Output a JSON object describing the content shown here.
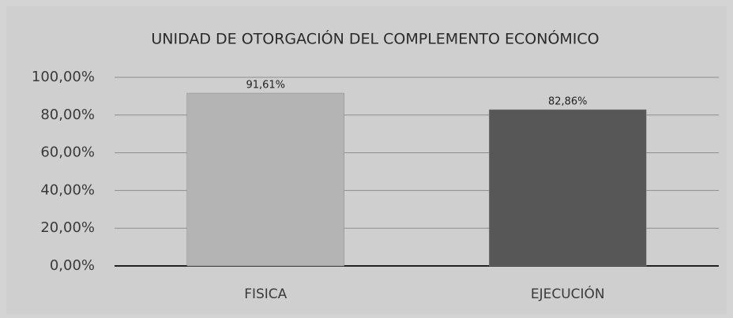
{
  "chart_data": {
    "type": "bar",
    "title": "UNIDAD DE OTORGACIÓN DEL COMPLEMENTO ECONÓMICO",
    "categories": [
      "FISICA",
      "EJECUCIÓN"
    ],
    "values": [
      91.61,
      82.86
    ],
    "value_labels": [
      "91,61%",
      "82,86%"
    ],
    "colors": [
      "#b4b4b4",
      "#575757"
    ],
    "ylim": [
      0,
      100
    ],
    "yticks": [
      {
        "value": 0,
        "label": "0,00%"
      },
      {
        "value": 20,
        "label": "20,00%"
      },
      {
        "value": 40,
        "label": "40,00%"
      },
      {
        "value": 60,
        "label": "60,00%"
      },
      {
        "value": 80,
        "label": "80,00%"
      },
      {
        "value": 100,
        "label": "100,00%"
      }
    ],
    "grid": true
  }
}
